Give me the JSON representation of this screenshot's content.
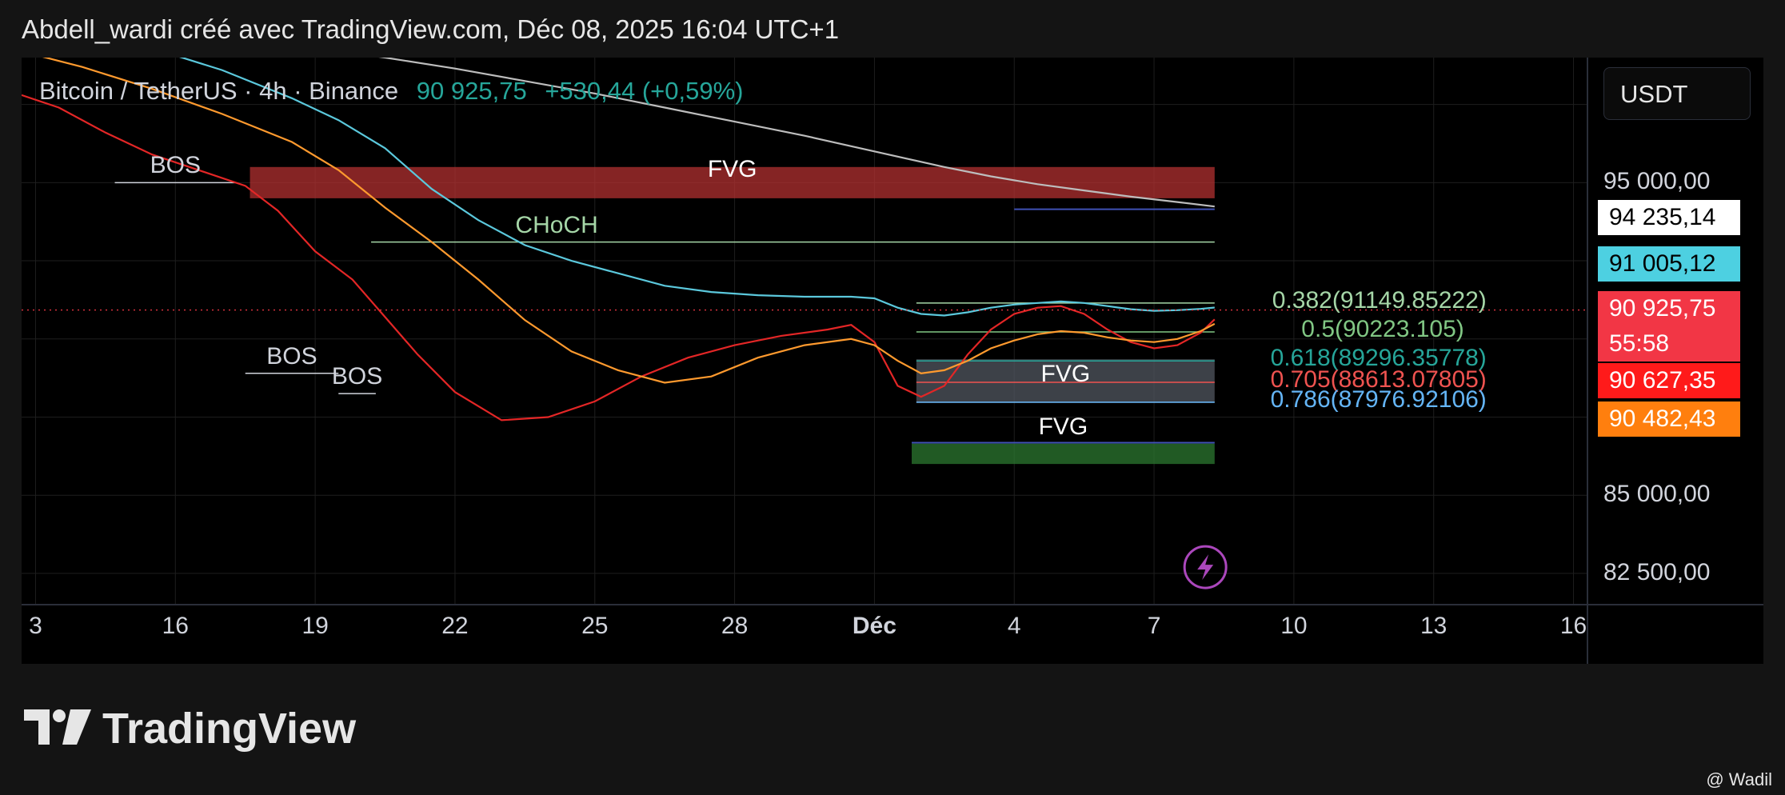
{
  "header": {
    "caption": "Abdell_wardi créé avec TradingView.com, Déc 08, 2025 16:04 UTC+1"
  },
  "legend": {
    "symbol": "Bitcoin / TetherUS · 4h · Binance",
    "price": "90 925,75",
    "change": "+530,44 (+0,59%)"
  },
  "currency_button": "USDT",
  "price_labels": [
    {
      "text": "94 235,14",
      "bg": "#ffffff",
      "fg": "#000000"
    },
    {
      "text": "91 005,12",
      "bg": "#4dd0e1",
      "fg": "#000000"
    },
    {
      "text": "90 925,75",
      "bg": "#f23645",
      "fg": "#ffffff"
    },
    {
      "text": "55:58",
      "bg": "#f23645",
      "fg": "#ffffff"
    },
    {
      "text": "90 627,35",
      "bg": "#ff1a1a",
      "fg": "#ffffff"
    },
    {
      "text": "90 482,43",
      "bg": "#ff7f0e",
      "fg": "#ffffff"
    }
  ],
  "watermark": {
    "brand": "TradingView",
    "author": "@ Wadil"
  },
  "colors": {
    "up": "#26a69a",
    "down": "#f23645",
    "ema_red": "#e32626",
    "ema_orange": "#ff9a2e",
    "ema_cyan": "#5bc8dc",
    "ema_grey": "#bdbdbd"
  },
  "chart_data": {
    "type": "candlestick",
    "symbol": "Bitcoin / TetherUS",
    "interval": "4h",
    "exchange": "Binance",
    "y_axis": {
      "ticks": [
        82500,
        85000,
        95000
      ],
      "tick_labels": [
        "82 500,00",
        "85 000,00",
        "95 000,00"
      ],
      "range": [
        81500,
        99000
      ]
    },
    "x_axis": {
      "ticks": [
        {
          "label": "3",
          "day": 13
        },
        {
          "label": "16",
          "day": 16
        },
        {
          "label": "19",
          "day": 19
        },
        {
          "label": "22",
          "day": 22
        },
        {
          "label": "25",
          "day": 25
        },
        {
          "label": "28",
          "day": 28
        },
        {
          "label": "Déc",
          "day": 31
        },
        {
          "label": "4",
          "day": 34
        },
        {
          "label": "7",
          "day": 37
        },
        {
          "label": "10",
          "day": 40
        },
        {
          "label": "13",
          "day": 43
        },
        {
          "label": "16",
          "day": 46
        }
      ],
      "range": [
        12.7,
        46.3
      ]
    },
    "last_price": 90925.75,
    "moving_averages": [
      {
        "color": "#e32626",
        "points": [
          [
            12.7,
            97800
          ],
          [
            13.5,
            97400
          ],
          [
            14.5,
            96600
          ],
          [
            15.5,
            95900
          ],
          [
            16.5,
            95400
          ],
          [
            17.5,
            94900
          ],
          [
            18.2,
            94100
          ],
          [
            19,
            92800
          ],
          [
            19.8,
            91900
          ],
          [
            20.5,
            90700
          ],
          [
            21.2,
            89500
          ],
          [
            22,
            88300
          ],
          [
            23,
            87400
          ],
          [
            24,
            87500
          ],
          [
            25,
            88000
          ],
          [
            26,
            88800
          ],
          [
            27,
            89400
          ],
          [
            28,
            89800
          ],
          [
            29,
            90100
          ],
          [
            30,
            90300
          ],
          [
            30.5,
            90450
          ],
          [
            31,
            89900
          ],
          [
            31.5,
            88500
          ],
          [
            32,
            88150
          ],
          [
            32.5,
            88500
          ],
          [
            33,
            89500
          ],
          [
            33.5,
            90300
          ],
          [
            34,
            90800
          ],
          [
            34.5,
            91000
          ],
          [
            35,
            91050
          ],
          [
            35.5,
            90800
          ],
          [
            36,
            90300
          ],
          [
            36.5,
            89900
          ],
          [
            37,
            89700
          ],
          [
            37.5,
            89800
          ],
          [
            38,
            90200
          ],
          [
            38.3,
            90627
          ]
        ]
      },
      {
        "color": "#ff9a2e",
        "points": [
          [
            12.7,
            99200
          ],
          [
            14,
            98700
          ],
          [
            15.5,
            98000
          ],
          [
            17,
            97200
          ],
          [
            18.5,
            96300
          ],
          [
            19.5,
            95400
          ],
          [
            20.5,
            94200
          ],
          [
            21.5,
            93100
          ],
          [
            22.5,
            91900
          ],
          [
            23.5,
            90600
          ],
          [
            24.5,
            89600
          ],
          [
            25.5,
            89000
          ],
          [
            26.5,
            88600
          ],
          [
            27.5,
            88800
          ],
          [
            28.5,
            89400
          ],
          [
            29.5,
            89800
          ],
          [
            30.5,
            90000
          ],
          [
            31,
            89800
          ],
          [
            31.5,
            89300
          ],
          [
            32,
            88900
          ],
          [
            32.5,
            89000
          ],
          [
            33,
            89300
          ],
          [
            33.5,
            89700
          ],
          [
            34,
            89950
          ],
          [
            34.5,
            90150
          ],
          [
            35,
            90250
          ],
          [
            35.5,
            90200
          ],
          [
            36,
            90050
          ],
          [
            36.5,
            89950
          ],
          [
            37,
            89900
          ],
          [
            37.5,
            90000
          ],
          [
            38,
            90250
          ],
          [
            38.3,
            90482
          ]
        ]
      },
      {
        "color": "#5bc8dc",
        "points": [
          [
            12.7,
            99600
          ],
          [
            14,
            99600
          ],
          [
            15.5,
            99300
          ],
          [
            17,
            98600
          ],
          [
            18.5,
            97700
          ],
          [
            19.5,
            97000
          ],
          [
            20.5,
            96100
          ],
          [
            21.5,
            94800
          ],
          [
            22.5,
            93800
          ],
          [
            23.5,
            93000
          ],
          [
            24.5,
            92500
          ],
          [
            25.5,
            92100
          ],
          [
            26.5,
            91700
          ],
          [
            27.5,
            91500
          ],
          [
            28.5,
            91400
          ],
          [
            29.5,
            91350
          ],
          [
            30.5,
            91350
          ],
          [
            31,
            91300
          ],
          [
            31.5,
            91000
          ],
          [
            32,
            90800
          ],
          [
            32.5,
            90750
          ],
          [
            33,
            90850
          ],
          [
            33.5,
            91000
          ],
          [
            34,
            91100
          ],
          [
            34.5,
            91150
          ],
          [
            35,
            91200
          ],
          [
            35.5,
            91150
          ],
          [
            36,
            91050
          ],
          [
            36.5,
            90950
          ],
          [
            37,
            90900
          ],
          [
            37.5,
            90920
          ],
          [
            38,
            90960
          ],
          [
            38.3,
            91005
          ]
        ]
      },
      {
        "color": "#bdbdbd",
        "points": [
          [
            17.5,
            99600
          ],
          [
            19,
            99300
          ],
          [
            20.5,
            99000
          ],
          [
            22,
            98650
          ],
          [
            23.5,
            98250
          ],
          [
            25,
            97850
          ],
          [
            26.5,
            97400
          ],
          [
            28,
            96950
          ],
          [
            29.5,
            96500
          ],
          [
            31,
            96000
          ],
          [
            32.5,
            95500
          ],
          [
            33.5,
            95200
          ],
          [
            34.5,
            94950
          ],
          [
            35.5,
            94750
          ],
          [
            36.5,
            94550
          ],
          [
            37.5,
            94380
          ],
          [
            38.3,
            94235
          ]
        ]
      }
    ],
    "zones": [
      {
        "label": "FVG",
        "x": [
          17.6,
          38.3
        ],
        "y": [
          94500,
          95500
        ],
        "color": "#b83232"
      },
      {
        "label": "FVG",
        "x": [
          31.9,
          38.3
        ],
        "y": [
          87950,
          89350
        ],
        "color": "#555a64"
      },
      {
        "label": "FVG",
        "x": [
          31.8,
          38.3
        ],
        "y": [
          86000,
          86650
        ],
        "color": "#2e7d32"
      }
    ],
    "fib_levels": [
      {
        "ratio": "0.382",
        "text": "0.382(91149.85222)",
        "price": 91149.85222,
        "color": "#a5d6a7"
      },
      {
        "ratio": "0.5",
        "text": "0.5(90223.105)",
        "price": 90223.105,
        "color": "#81c784"
      },
      {
        "ratio": "0.618",
        "text": "0.618(89296.35778)",
        "price": 89296.35778,
        "color": "#26a69a"
      },
      {
        "ratio": "0.705",
        "text": "0.705(88613.07805)",
        "price": 88613.07805,
        "color": "#ef5350"
      },
      {
        "ratio": "0.786",
        "text": "0.786(87976.92106)",
        "price": 87976.92106,
        "color": "#64b5f6"
      }
    ],
    "structure_labels": [
      {
        "text": "BOS",
        "x": [
          14.7,
          17.3
        ],
        "price": 95000,
        "line_color": "#d1d4dc"
      },
      {
        "text": "BOS",
        "x": [
          17.5,
          19.5
        ],
        "price": 88900,
        "line_color": "#d1d4dc"
      },
      {
        "text": "BOS",
        "x": [
          19.5,
          20.3
        ],
        "price": 88250,
        "line_color": "#d1d4dc"
      },
      {
        "text": "CHoCH",
        "x": [
          20.2,
          38.3
        ],
        "price": 93100,
        "line_color": "#a5d6a7"
      }
    ],
    "candles": []
  }
}
